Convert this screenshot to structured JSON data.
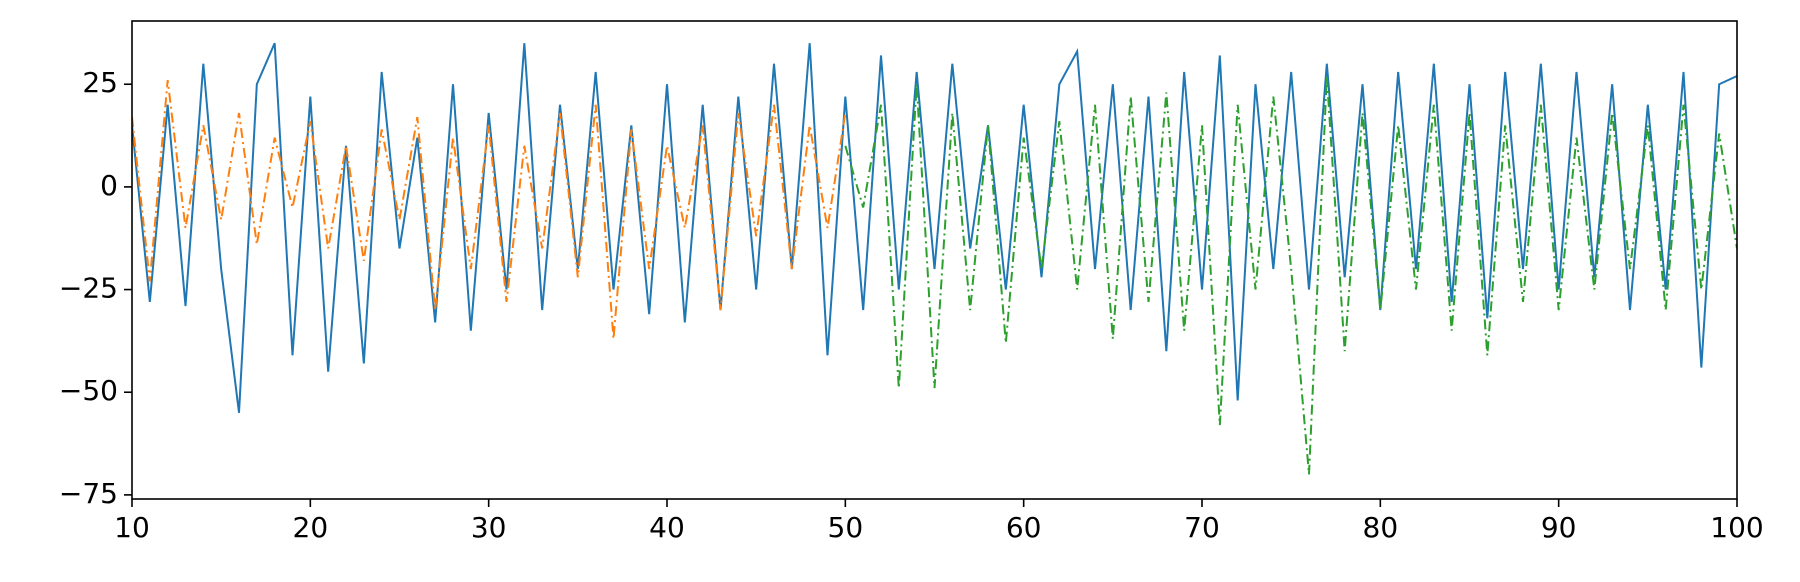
{
  "chart_data": {
    "type": "line",
    "xlim": [
      10,
      100
    ],
    "ylim": [
      -76,
      40.4
    ],
    "xticks": [
      10,
      20,
      30,
      40,
      50,
      60,
      70,
      80,
      90,
      100
    ],
    "yticks": [
      {
        "value": -75,
        "label": "−75"
      },
      {
        "value": -50,
        "label": "−50"
      },
      {
        "value": -25,
        "label": "−25"
      },
      0,
      25
    ],
    "grid": false,
    "series": [
      {
        "color": "#1f77b4",
        "linestyle": "solid",
        "x": [
          10,
          11,
          12,
          13,
          14,
          15,
          16,
          17,
          18,
          19,
          20,
          21,
          22,
          23,
          24,
          25,
          26,
          27,
          28,
          29,
          30,
          31,
          32,
          33,
          34,
          35,
          36,
          37,
          38,
          39,
          40,
          41,
          42,
          43,
          44,
          45,
          46,
          47,
          48,
          49,
          50,
          51,
          52,
          53,
          54,
          55,
          56,
          57,
          58,
          59,
          60,
          61,
          62,
          63,
          64,
          65,
          66,
          67,
          68,
          69,
          70,
          71,
          72,
          73,
          74,
          75,
          76,
          77,
          78,
          79,
          80,
          81,
          82,
          83,
          84,
          85,
          86,
          87,
          88,
          89,
          90,
          91,
          92,
          93,
          94,
          95,
          96,
          97,
          98,
          99,
          100
        ],
        "values": [
          15,
          -28,
          20,
          -29,
          30,
          -20,
          -55,
          25,
          35,
          -41,
          22,
          -45,
          10,
          -43,
          28,
          -15,
          12,
          -33,
          25,
          -35,
          18,
          -25,
          35,
          -30,
          20,
          -20,
          28,
          -25,
          15,
          -31,
          25,
          -33,
          20,
          -30,
          22,
          -25,
          30,
          -20,
          35,
          -41,
          22,
          -30,
          32,
          -25,
          28,
          -20,
          30,
          -15,
          15,
          -25,
          20,
          -22,
          25,
          33,
          -20,
          25,
          -30,
          22,
          -40,
          28,
          -25,
          32,
          -52,
          25,
          -20,
          28,
          -25,
          30,
          -22,
          25,
          -30,
          28,
          -20,
          30,
          -28,
          25,
          -32,
          28,
          -20,
          30,
          -25,
          28,
          -22,
          25,
          -30,
          20,
          -25,
          28,
          -44,
          25,
          27
        ]
      },
      {
        "color": "#ff7f0e",
        "linestyle": "dashdot",
        "x": [
          10,
          11,
          12,
          13,
          14,
          15,
          16,
          17,
          18,
          19,
          20,
          21,
          22,
          23,
          24,
          25,
          26,
          27,
          28,
          29,
          30,
          31,
          32,
          33,
          34,
          35,
          36,
          37,
          38,
          39,
          40,
          41,
          42,
          43,
          44,
          45,
          46,
          47,
          48,
          49,
          50
        ],
        "values": [
          17,
          -23,
          26,
          -10,
          15,
          -8,
          18,
          -14,
          12,
          -5,
          16,
          -15,
          10,
          -18,
          14,
          -8,
          17,
          -30,
          12,
          -20,
          15,
          -28,
          10,
          -15,
          18,
          -22,
          20,
          -37,
          14,
          -20,
          10,
          -10,
          15,
          -30,
          18,
          -12,
          20,
          -20,
          15,
          -10,
          18
        ]
      },
      {
        "color": "#2ca02c",
        "linestyle": "dashdot",
        "x": [
          50,
          51,
          52,
          53,
          54,
          55,
          56,
          57,
          58,
          59,
          60,
          61,
          62,
          63,
          64,
          65,
          66,
          67,
          68,
          69,
          70,
          71,
          72,
          73,
          74,
          75,
          76,
          77,
          78,
          79,
          80,
          81,
          82,
          83,
          84,
          85,
          86,
          87,
          88,
          89,
          90,
          91,
          92,
          93,
          94,
          95,
          96,
          97,
          98,
          99,
          100
        ],
        "values": [
          10,
          -5,
          20,
          -49,
          25,
          -49,
          18,
          -30,
          15,
          -38,
          12,
          -20,
          16,
          -25,
          20,
          -37,
          22,
          -28,
          23,
          -35,
          15,
          -58,
          20,
          -25,
          22,
          -20,
          -70,
          27,
          -40,
          18,
          -30,
          15,
          -25,
          20,
          -35,
          18,
          -41,
          15,
          -28,
          20,
          -30,
          12,
          -25,
          18,
          -20,
          15,
          -30,
          20,
          -25,
          13,
          -15
        ]
      }
    ]
  }
}
